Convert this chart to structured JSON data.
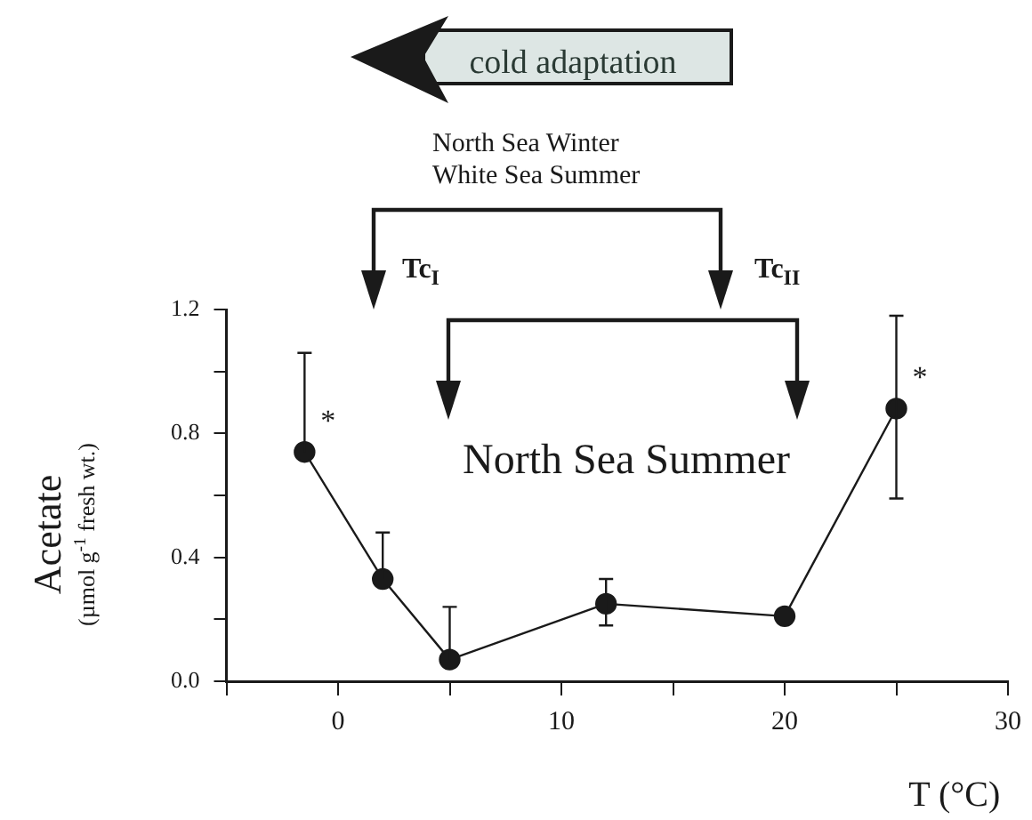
{
  "chart_data": {
    "type": "line",
    "xlabel": "T (°C)",
    "ylabel": "Acetate (µmol g$^{-1}$ fresh wt.)",
    "x": [
      -1.5,
      2,
      5,
      12,
      20,
      25
    ],
    "series": [
      {
        "color": "#1a1a1a",
        "values": [
          0.74,
          0.33,
          0.07,
          0.25,
          0.21,
          0.88
        ],
        "errors": [
          [
            0.74,
            1.06
          ],
          [
            0.33,
            0.48
          ],
          [
            0.07,
            0.24
          ],
          [
            0.18,
            0.33
          ],
          null,
          [
            0.59,
            1.18
          ]
        ]
      }
    ],
    "xlim": [
      -5,
      30
    ],
    "xticks": [
      {
        "value": -5,
        "label": null
      },
      0,
      {
        "value": 5,
        "label": null
      },
      10,
      {
        "value": 15,
        "label": null
      },
      20,
      {
        "value": 25,
        "label": null
      },
      30
    ],
    "ylim": [
      0,
      1.2
    ],
    "yticks": [
      {
        "value": 0,
        "label": "0.0"
      },
      {
        "value": 0.2,
        "label": null
      },
      0.4,
      {
        "value": 0.6,
        "label": null
      },
      0.8,
      {
        "value": 1,
        "label": null
      },
      1.2
    ],
    "marker": "circle",
    "line_style": "solid",
    "annotations": [
      "cold adaptation",
      "North Sea Winter",
      "White Sea Summer",
      "Tc$_{I}$",
      "Tc$_{II}$",
      "North Sea Summer",
      {
        "text": "*",
        "x": -1.5,
        "y": 0.74
      },
      {
        "text": "*",
        "x": 25,
        "y": 0.88
      }
    ]
  }
}
